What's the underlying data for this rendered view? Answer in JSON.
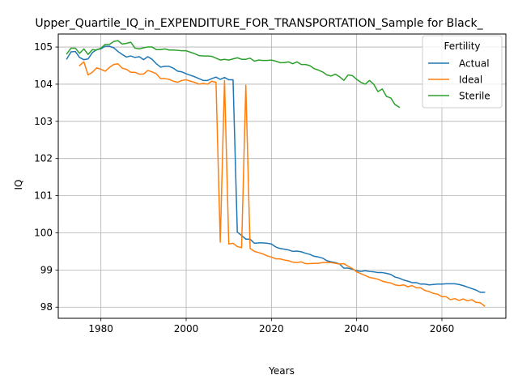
{
  "chart_data": {
    "type": "line",
    "title": "Upper_Quartile_IQ_in_EXPENDITURE_FOR_TRANSPORTATION_Sample for Black_",
    "xlabel": "Years",
    "ylabel": "IQ",
    "xlim": [
      1970,
      2075
    ],
    "ylim": [
      97.7,
      105.35
    ],
    "x_ticks": [
      1980,
      2000,
      2020,
      2040,
      2060
    ],
    "y_ticks": [
      98,
      99,
      100,
      101,
      102,
      103,
      104,
      105
    ],
    "grid": true,
    "legend": {
      "title": "Fertility",
      "position": "top-right"
    },
    "colors": {
      "Actual": "#1f77b4",
      "Ideal": "#ff7f0e",
      "Sterile": "#2ca02c"
    },
    "series": [
      {
        "name": "Actual",
        "points": [
          [
            1972,
            104.68
          ],
          [
            1973,
            104.87
          ],
          [
            1974,
            104.88
          ],
          [
            1975,
            104.72
          ],
          [
            1976,
            104.66
          ],
          [
            1977,
            104.68
          ],
          [
            1978,
            104.85
          ],
          [
            1979,
            104.93
          ],
          [
            1980,
            104.95
          ],
          [
            1981,
            105.02
          ],
          [
            1982,
            105.02
          ],
          [
            1983,
            104.98
          ],
          [
            1984,
            104.88
          ],
          [
            1985,
            104.8
          ],
          [
            1986,
            104.73
          ],
          [
            1987,
            104.76
          ],
          [
            1988,
            104.72
          ],
          [
            1989,
            104.74
          ],
          [
            1990,
            104.66
          ],
          [
            1991,
            104.74
          ],
          [
            1992,
            104.67
          ],
          [
            1993,
            104.55
          ],
          [
            1994,
            104.46
          ],
          [
            1995,
            104.48
          ],
          [
            1996,
            104.48
          ],
          [
            1997,
            104.43
          ],
          [
            1998,
            104.35
          ],
          [
            1999,
            104.33
          ],
          [
            2000,
            104.28
          ],
          [
            2001,
            104.24
          ],
          [
            2002,
            104.2
          ],
          [
            2003,
            104.15
          ],
          [
            2004,
            104.1
          ],
          [
            2005,
            104.1
          ],
          [
            2006,
            104.15
          ],
          [
            2007,
            104.19
          ],
          [
            2008,
            104.13
          ],
          [
            2009,
            104.18
          ],
          [
            2010,
            104.12
          ],
          [
            2011,
            104.12
          ],
          [
            2012,
            100.02
          ],
          [
            2013,
            99.93
          ],
          [
            2014,
            99.83
          ],
          [
            2015,
            99.83
          ],
          [
            2016,
            99.72
          ],
          [
            2017,
            99.73
          ],
          [
            2018,
            99.73
          ],
          [
            2019,
            99.72
          ],
          [
            2020,
            99.7
          ],
          [
            2021,
            99.62
          ],
          [
            2022,
            99.58
          ],
          [
            2023,
            99.56
          ],
          [
            2024,
            99.54
          ],
          [
            2025,
            99.5
          ],
          [
            2026,
            99.51
          ],
          [
            2027,
            99.49
          ],
          [
            2028,
            99.45
          ],
          [
            2029,
            99.42
          ],
          [
            2030,
            99.37
          ],
          [
            2031,
            99.35
          ],
          [
            2032,
            99.32
          ],
          [
            2033,
            99.25
          ],
          [
            2034,
            99.22
          ],
          [
            2035,
            99.2
          ],
          [
            2036,
            99.16
          ],
          [
            2037,
            99.05
          ],
          [
            2038,
            99.05
          ],
          [
            2039,
            99.02
          ],
          [
            2040,
            98.98
          ],
          [
            2041,
            98.96
          ],
          [
            2042,
            98.98
          ],
          [
            2043,
            98.96
          ],
          [
            2044,
            98.95
          ],
          [
            2045,
            98.93
          ],
          [
            2046,
            98.93
          ],
          [
            2047,
            98.91
          ],
          [
            2048,
            98.88
          ],
          [
            2049,
            98.81
          ],
          [
            2050,
            98.78
          ],
          [
            2051,
            98.73
          ],
          [
            2052,
            98.7
          ],
          [
            2053,
            98.66
          ],
          [
            2054,
            98.66
          ],
          [
            2055,
            98.62
          ],
          [
            2056,
            98.62
          ],
          [
            2057,
            98.6
          ],
          [
            2058,
            98.61
          ],
          [
            2059,
            98.62
          ],
          [
            2060,
            98.62
          ],
          [
            2061,
            98.63
          ],
          [
            2062,
            98.63
          ],
          [
            2063,
            98.63
          ],
          [
            2064,
            98.61
          ],
          [
            2065,
            98.58
          ],
          [
            2066,
            98.54
          ],
          [
            2067,
            98.5
          ],
          [
            2068,
            98.46
          ],
          [
            2069,
            98.4
          ],
          [
            2070,
            98.4
          ]
        ]
      },
      {
        "name": "Ideal",
        "points": [
          [
            1975,
            104.5
          ],
          [
            1976,
            104.6
          ],
          [
            1977,
            104.25
          ],
          [
            1978,
            104.32
          ],
          [
            1979,
            104.44
          ],
          [
            1980,
            104.4
          ],
          [
            1981,
            104.35
          ],
          [
            1982,
            104.45
          ],
          [
            1983,
            104.53
          ],
          [
            1984,
            104.55
          ],
          [
            1985,
            104.43
          ],
          [
            1986,
            104.4
          ],
          [
            1987,
            104.32
          ],
          [
            1988,
            104.32
          ],
          [
            1989,
            104.27
          ],
          [
            1990,
            104.27
          ],
          [
            1991,
            104.37
          ],
          [
            1992,
            104.33
          ],
          [
            1993,
            104.28
          ],
          [
            1994,
            104.15
          ],
          [
            1995,
            104.15
          ],
          [
            1996,
            104.13
          ],
          [
            1997,
            104.08
          ],
          [
            1998,
            104.05
          ],
          [
            1999,
            104.1
          ],
          [
            2000,
            104.12
          ],
          [
            2001,
            104.08
          ],
          [
            2002,
            104.05
          ],
          [
            2003,
            104.0
          ],
          [
            2004,
            104.02
          ],
          [
            2005,
            104.0
          ],
          [
            2006,
            104.08
          ],
          [
            2007,
            104.05
          ],
          [
            2008,
            99.75
          ],
          [
            2009,
            104.1
          ],
          [
            2010,
            99.7
          ],
          [
            2011,
            99.72
          ],
          [
            2012,
            99.63
          ],
          [
            2013,
            99.6
          ],
          [
            2014,
            103.97
          ],
          [
            2015,
            99.58
          ],
          [
            2016,
            99.5
          ],
          [
            2017,
            99.47
          ],
          [
            2018,
            99.43
          ],
          [
            2019,
            99.38
          ],
          [
            2020,
            99.35
          ],
          [
            2021,
            99.3
          ],
          [
            2022,
            99.3
          ],
          [
            2023,
            99.27
          ],
          [
            2024,
            99.25
          ],
          [
            2025,
            99.21
          ],
          [
            2026,
            99.2
          ],
          [
            2027,
            99.22
          ],
          [
            2028,
            99.17
          ],
          [
            2029,
            99.17
          ],
          [
            2030,
            99.18
          ],
          [
            2031,
            99.18
          ],
          [
            2032,
            99.2
          ],
          [
            2033,
            99.2
          ],
          [
            2034,
            99.2
          ],
          [
            2035,
            99.18
          ],
          [
            2036,
            99.16
          ],
          [
            2037,
            99.17
          ],
          [
            2038,
            99.1
          ],
          [
            2039,
            99.04
          ],
          [
            2040,
            98.95
          ],
          [
            2041,
            98.9
          ],
          [
            2042,
            98.85
          ],
          [
            2043,
            98.8
          ],
          [
            2044,
            98.78
          ],
          [
            2045,
            98.75
          ],
          [
            2046,
            98.7
          ],
          [
            2047,
            98.67
          ],
          [
            2048,
            98.65
          ],
          [
            2049,
            98.6
          ],
          [
            2050,
            98.58
          ],
          [
            2051,
            98.6
          ],
          [
            2052,
            98.55
          ],
          [
            2053,
            98.58
          ],
          [
            2054,
            98.52
          ],
          [
            2055,
            98.52
          ],
          [
            2056,
            98.45
          ],
          [
            2057,
            98.42
          ],
          [
            2058,
            98.37
          ],
          [
            2059,
            98.35
          ],
          [
            2060,
            98.28
          ],
          [
            2061,
            98.28
          ],
          [
            2062,
            98.2
          ],
          [
            2063,
            98.23
          ],
          [
            2064,
            98.18
          ],
          [
            2065,
            98.22
          ],
          [
            2066,
            98.17
          ],
          [
            2067,
            98.2
          ],
          [
            2068,
            98.13
          ],
          [
            2069,
            98.12
          ],
          [
            2070,
            98.03
          ]
        ]
      },
      {
        "name": "Sterile",
        "points": [
          [
            1972,
            104.82
          ],
          [
            1973,
            104.97
          ],
          [
            1974,
            104.97
          ],
          [
            1975,
            104.83
          ],
          [
            1976,
            104.95
          ],
          [
            1977,
            104.8
          ],
          [
            1978,
            104.93
          ],
          [
            1979,
            104.92
          ],
          [
            1980,
            104.97
          ],
          [
            1981,
            105.07
          ],
          [
            1982,
            105.07
          ],
          [
            1983,
            105.15
          ],
          [
            1984,
            105.17
          ],
          [
            1985,
            105.08
          ],
          [
            1986,
            105.1
          ],
          [
            1987,
            105.13
          ],
          [
            1988,
            104.97
          ],
          [
            1989,
            104.95
          ],
          [
            1990,
            104.98
          ],
          [
            1991,
            105.0
          ],
          [
            1992,
            105.0
          ],
          [
            1993,
            104.93
          ],
          [
            1994,
            104.93
          ],
          [
            1995,
            104.95
          ],
          [
            1996,
            104.92
          ],
          [
            1997,
            104.92
          ],
          [
            1998,
            104.91
          ],
          [
            1999,
            104.9
          ],
          [
            2000,
            104.9
          ],
          [
            2001,
            104.86
          ],
          [
            2002,
            104.82
          ],
          [
            2003,
            104.77
          ],
          [
            2004,
            104.76
          ],
          [
            2005,
            104.76
          ],
          [
            2006,
            104.75
          ],
          [
            2007,
            104.7
          ],
          [
            2008,
            104.65
          ],
          [
            2009,
            104.67
          ],
          [
            2010,
            104.65
          ],
          [
            2011,
            104.68
          ],
          [
            2012,
            104.71
          ],
          [
            2013,
            104.67
          ],
          [
            2014,
            104.67
          ],
          [
            2015,
            104.7
          ],
          [
            2016,
            104.62
          ],
          [
            2017,
            104.65
          ],
          [
            2018,
            104.64
          ],
          [
            2019,
            104.64
          ],
          [
            2020,
            104.65
          ],
          [
            2021,
            104.62
          ],
          [
            2022,
            104.58
          ],
          [
            2023,
            104.58
          ],
          [
            2024,
            104.6
          ],
          [
            2025,
            104.55
          ],
          [
            2026,
            104.6
          ],
          [
            2027,
            104.53
          ],
          [
            2028,
            104.53
          ],
          [
            2029,
            104.5
          ],
          [
            2030,
            104.42
          ],
          [
            2031,
            104.38
          ],
          [
            2032,
            104.33
          ],
          [
            2033,
            104.25
          ],
          [
            2034,
            104.22
          ],
          [
            2035,
            104.27
          ],
          [
            2036,
            104.2
          ],
          [
            2037,
            104.1
          ],
          [
            2038,
            104.25
          ],
          [
            2039,
            104.23
          ],
          [
            2040,
            104.13
          ],
          [
            2041,
            104.05
          ],
          [
            2042,
            104.0
          ],
          [
            2043,
            104.1
          ],
          [
            2044,
            104.0
          ],
          [
            2045,
            103.8
          ],
          [
            2046,
            103.87
          ],
          [
            2047,
            103.67
          ],
          [
            2048,
            103.63
          ],
          [
            2049,
            103.45
          ],
          [
            2050,
            103.38
          ]
        ]
      }
    ]
  }
}
